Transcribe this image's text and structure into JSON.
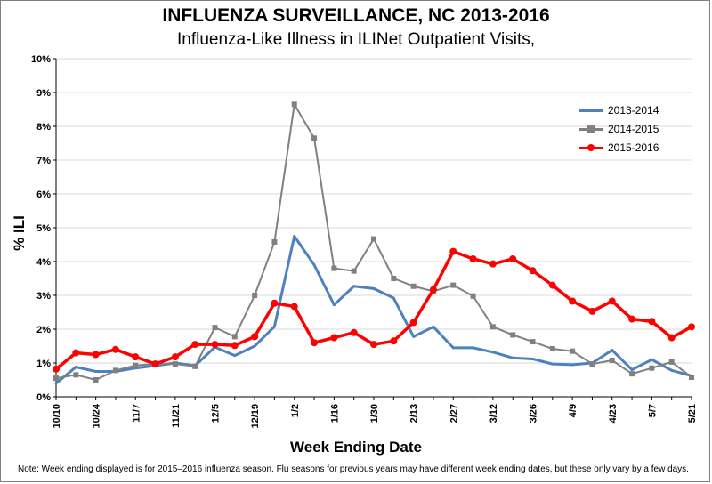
{
  "title": "INFLUENZA SURVEILLANCE, NC 2013-2016",
  "subtitle": "Influenza-Like Illness in ILINet  Outpatient Visits,",
  "note": "Note:  Week ending displayed is for 2015–2016 influenza season.  Flu seasons for previous years may have different week ending dates, but these only vary by a  few days.",
  "chart_data": {
    "type": "line",
    "title": "INFLUENZA SURVEILLANCE, NC 2013-2016",
    "subtitle": "Influenza-Like Illness in ILINet  Outpatient Visits,",
    "xlabel": "Week Ending Date",
    "ylabel": "% ILI",
    "ylim": [
      0,
      10
    ],
    "yticks": [
      "0%",
      "1%",
      "2%",
      "3%",
      "4%",
      "5%",
      "6%",
      "7%",
      "8%",
      "9%",
      "10%"
    ],
    "grid": true,
    "legend_position": "top-right",
    "x_tick_labels": [
      "10/10",
      "10/24",
      "11/7",
      "11/21",
      "12/5",
      "12/19",
      "1/2",
      "1/16",
      "1/30",
      "2/13",
      "2/27",
      "3/12",
      "3/26",
      "4/9",
      "4/23",
      "5/7",
      "5/21"
    ],
    "x": [
      "10/10",
      "10/17",
      "10/24",
      "10/31",
      "11/7",
      "11/14",
      "11/21",
      "11/28",
      "12/5",
      "12/12",
      "12/19",
      "12/26",
      "1/2",
      "1/9",
      "1/16",
      "1/23",
      "1/30",
      "2/6",
      "2/13",
      "2/20",
      "2/27",
      "3/5",
      "3/12",
      "3/19",
      "3/26",
      "4/2",
      "4/9",
      "4/16",
      "4/23",
      "4/30",
      "5/7",
      "5/14",
      "5/21"
    ],
    "series": [
      {
        "name": "2013-2014",
        "color": "#4f81bd",
        "marker": "none",
        "values": [
          0.4,
          0.88,
          0.75,
          0.75,
          0.85,
          0.92,
          1.0,
          0.92,
          1.47,
          1.22,
          1.5,
          2.08,
          4.75,
          3.9,
          2.72,
          3.27,
          3.2,
          2.92,
          1.78,
          2.07,
          1.45,
          1.45,
          1.32,
          1.15,
          1.12,
          0.97,
          0.95,
          1.0,
          1.38,
          0.8,
          1.1,
          0.78,
          0.62
        ]
      },
      {
        "name": "2014-2015",
        "color": "#808080",
        "marker": "square",
        "values": [
          0.55,
          0.65,
          0.5,
          0.78,
          0.93,
          0.97,
          0.97,
          0.9,
          2.05,
          1.78,
          3.0,
          4.58,
          8.65,
          7.65,
          3.8,
          3.72,
          4.67,
          3.5,
          3.27,
          3.12,
          3.3,
          2.98,
          2.07,
          1.83,
          1.63,
          1.42,
          1.35,
          0.97,
          1.08,
          0.68,
          0.85,
          1.03,
          0.58
        ]
      },
      {
        "name": "2015-2016",
        "color": "#ff0000",
        "marker": "circle",
        "values": [
          0.82,
          1.3,
          1.25,
          1.4,
          1.18,
          0.97,
          1.18,
          1.55,
          1.55,
          1.52,
          1.78,
          2.77,
          2.67,
          1.6,
          1.75,
          1.9,
          1.55,
          1.65,
          2.2,
          3.17,
          4.3,
          4.08,
          3.93,
          4.08,
          3.73,
          3.3,
          2.83,
          2.53,
          2.83,
          2.3,
          2.23,
          1.75,
          2.07
        ]
      }
    ]
  }
}
